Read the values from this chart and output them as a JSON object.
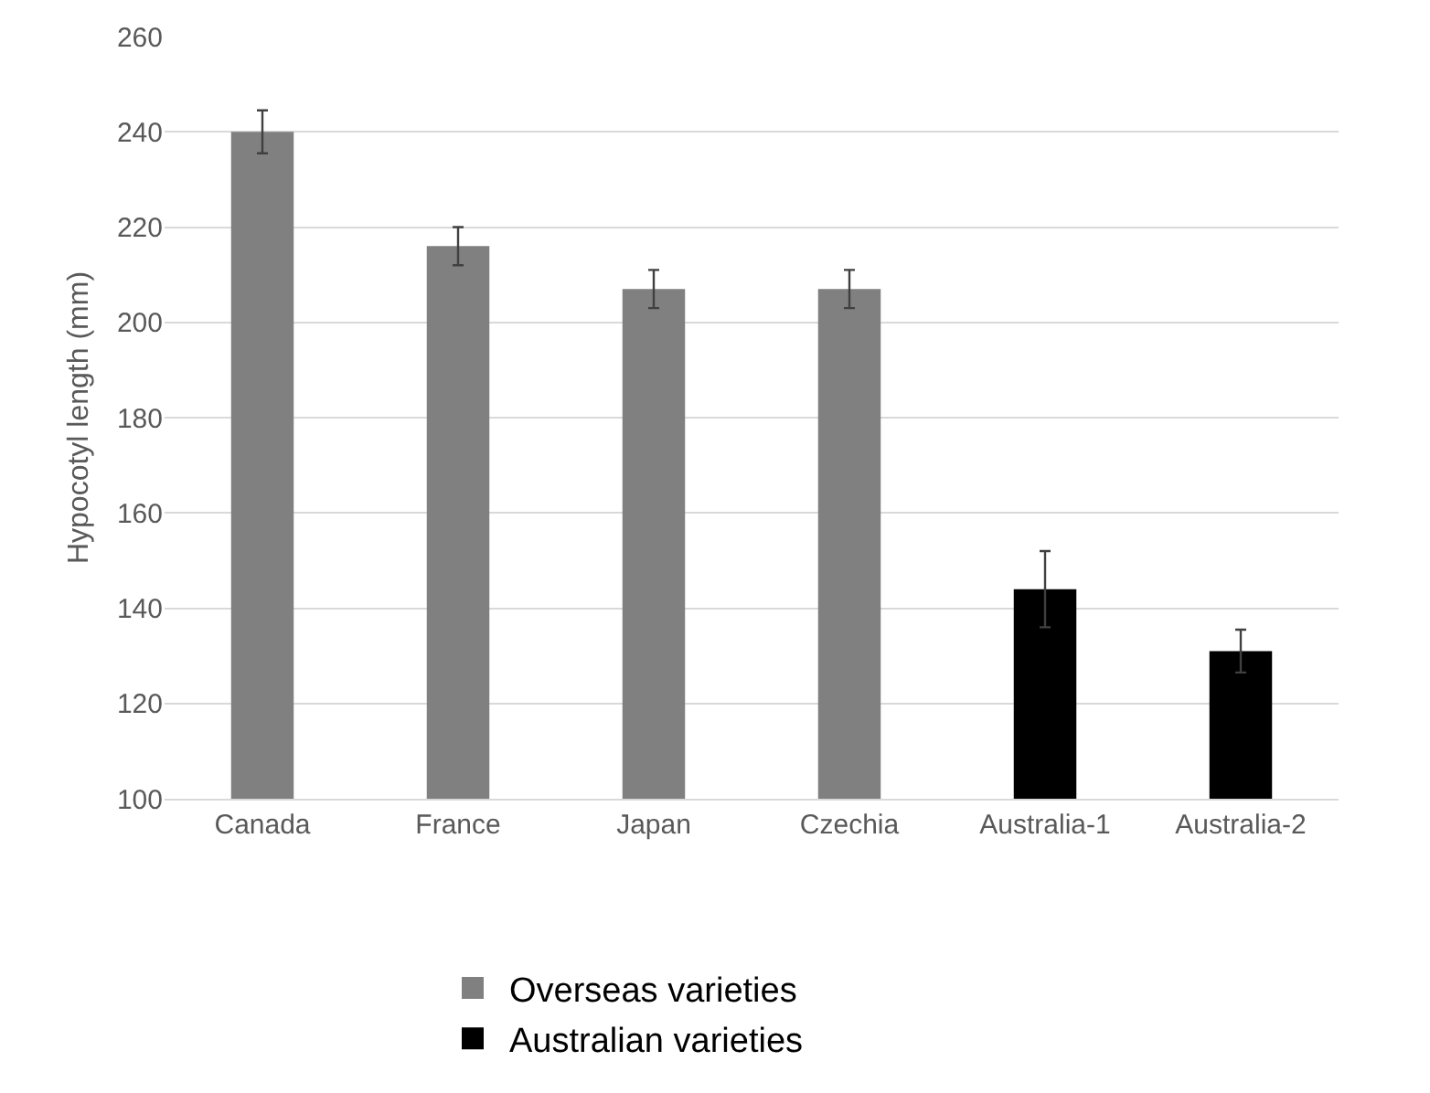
{
  "chart_data": {
    "type": "bar",
    "ylabel": "Hypocotyl length (mm)",
    "categories": [
      "Canada",
      "France",
      "Japan",
      "Czechia",
      "Australia-1",
      "Australia-2"
    ],
    "series": [
      {
        "name": "Overseas varieties",
        "color": "#808080",
        "values": [
          240,
          216,
          207,
          207,
          null,
          null
        ],
        "errors": [
          4.5,
          4,
          4,
          4,
          null,
          null
        ]
      },
      {
        "name": "Australian varieties",
        "color": "#000000",
        "values": [
          null,
          null,
          null,
          null,
          144,
          131
        ],
        "errors": [
          null,
          null,
          null,
          null,
          8,
          4.5
        ]
      }
    ],
    "ylim": [
      100,
      260
    ],
    "yticks": [
      100,
      120,
      140,
      160,
      180,
      200,
      220,
      240,
      260
    ],
    "grid": "y",
    "legend": "bottom"
  }
}
